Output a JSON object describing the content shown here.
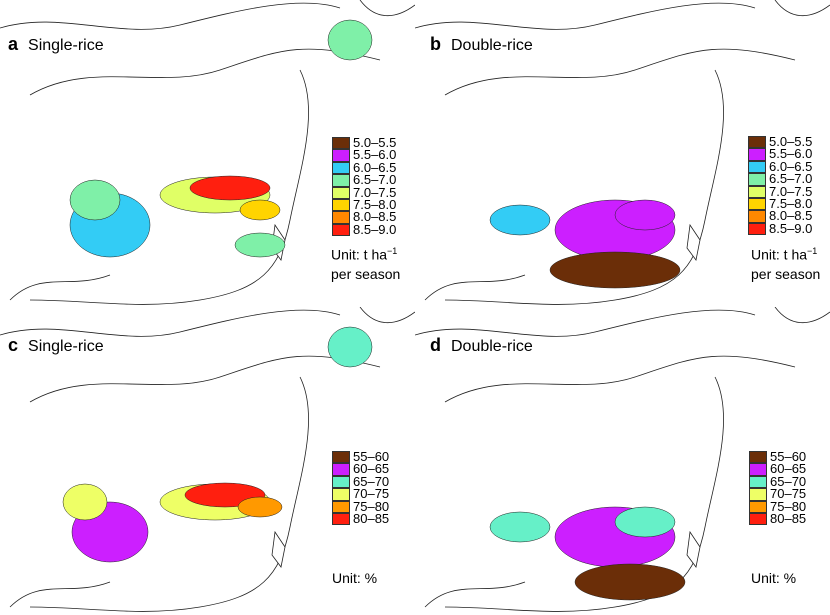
{
  "panels": [
    {
      "id": "a",
      "title": "Single-rice"
    },
    {
      "id": "b",
      "title": "Double-rice"
    },
    {
      "id": "c",
      "title": "Single-rice"
    },
    {
      "id": "d",
      "title": "Double-rice"
    }
  ],
  "legend_yield": {
    "classes": [
      {
        "label": "5.0–5.5",
        "color": "#6b2e08"
      },
      {
        "label": "5.5–6.0",
        "color": "#cc1fff"
      },
      {
        "label": "6.0–6.5",
        "color": "#33ccf5"
      },
      {
        "label": "6.5–7.0",
        "color": "#7ff0a8"
      },
      {
        "label": "7.0–7.5",
        "color": "#e0ff66"
      },
      {
        "label": "7.5–8.0",
        "color": "#ffd400"
      },
      {
        "label": "8.0–8.5",
        "color": "#ff8800"
      },
      {
        "label": "8.5–9.0",
        "color": "#ff1f0f"
      }
    ],
    "unit_prefix": "Unit: t ha",
    "unit_sup": "−1",
    "unit_line2": "per season"
  },
  "legend_pct": {
    "classes": [
      {
        "label": "55–60",
        "color": "#6b2e08"
      },
      {
        "label": "60–65",
        "color": "#cc1fff"
      },
      {
        "label": "65–70",
        "color": "#66f0c8"
      },
      {
        "label": "70–75",
        "color": "#eeff66"
      },
      {
        "label": "75–80",
        "color": "#ff9900"
      },
      {
        "label": "80–85",
        "color": "#ff1f0f"
      }
    ],
    "unit": "Unit: %"
  }
}
